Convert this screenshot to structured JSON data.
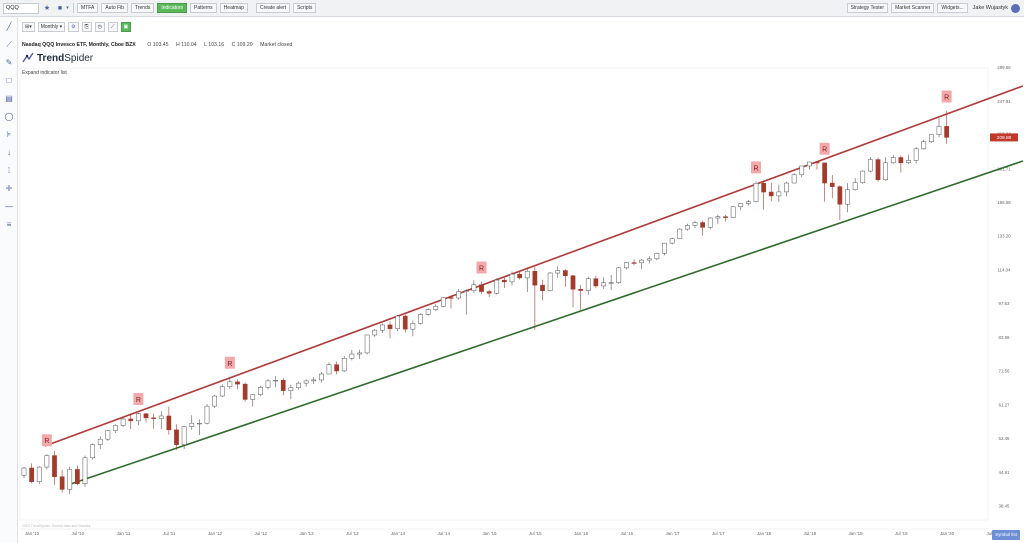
{
  "topbar": {
    "symbol_input": "QQQ",
    "buttons": [
      "MTFA",
      "Auto Fib",
      "Trends",
      "Indicators",
      "Patterns",
      "Heatmap",
      "Create alert",
      "Scripts"
    ],
    "active_button": "Indicators",
    "right_buttons": [
      "Strategy Tester",
      "Market Scanner",
      "Widgets..."
    ],
    "user_name": "Jake Wujastyk"
  },
  "chart_toolbar": {
    "timeframe": "Monthly"
  },
  "header": {
    "symbol_title": "Nasdaq QQQ Invesco ETF, Monthly, Cboe BZX",
    "open": "O 103.45",
    "high": "H 110.04",
    "low": "L 103.16",
    "close": "C 109.20",
    "market_status": "Market closed",
    "logo_bold": "Trend",
    "logo_light": "Spider",
    "expand_label": "Expand indicator list"
  },
  "watermark": "2020 TrendSpider. Source data and Nasdaq",
  "zoom_button": "Symbol list",
  "icons": {
    "star": "star-icon",
    "settings": "gear-icon",
    "user": "user-icon"
  },
  "colors": {
    "up_candle_fill": "#ffffff",
    "down_candle_fill": "#a33a2a",
    "resistance_line": "#b03a3a",
    "support_line": "#2e6b2a",
    "marker_bg": "#f3a9a9",
    "price_label_bg": "#c0392b",
    "active_green": "#5cb85c"
  },
  "chart_data": {
    "type": "candlestick",
    "y_axis_scale": "log",
    "y_ticks": [
      "289.56",
      "247.91",
      "213.24",
      "181.71",
      "155.58",
      "133.20",
      "114.04",
      "97.63",
      "83.59",
      "71.56",
      "61.27",
      "52.46",
      "44.91",
      "38.45"
    ],
    "x_ticks": [
      "Jan '10",
      "Jul '10",
      "Jan '11",
      "Jul '11",
      "Jan '12",
      "Jul '12",
      "Jan '13",
      "Jul '13",
      "Jan '14",
      "Jul '14",
      "Jan '15",
      "Jul '15",
      "Jan '16",
      "Jul '16",
      "Jan '17",
      "Jul '17",
      "Jan '18",
      "Jul '18",
      "Jan '19",
      "Jul '19",
      "Jan '20",
      "Jul '20"
    ],
    "current_price_label": "209.88",
    "marker_label": "R",
    "marker_months": [
      "2010-04",
      "2011-04",
      "2012-04",
      "2015-01",
      "2018-01",
      "2018-10",
      "2020-02"
    ],
    "resistance_line": {
      "start": "2010-04",
      "end": "2020-12"
    },
    "support_line": {
      "start": "2010-07",
      "end": "2020-12"
    },
    "candles": [
      {
        "o": 44.3,
        "h": 46.0,
        "l": 43.7,
        "c": 45.8
      },
      {
        "o": 45.8,
        "h": 46.8,
        "l": 42.7,
        "c": 43.0
      },
      {
        "o": 43.0,
        "h": 46.2,
        "l": 42.5,
        "c": 46.0
      },
      {
        "o": 46.0,
        "h": 48.8,
        "l": 45.5,
        "c": 48.5
      },
      {
        "o": 48.5,
        "h": 49.6,
        "l": 42.4,
        "c": 44.0
      },
      {
        "o": 44.0,
        "h": 45.4,
        "l": 40.9,
        "c": 41.5
      },
      {
        "o": 41.5,
        "h": 46.1,
        "l": 40.6,
        "c": 45.5
      },
      {
        "o": 45.5,
        "h": 46.3,
        "l": 42.3,
        "c": 42.6
      },
      {
        "o": 42.6,
        "h": 48.5,
        "l": 42.0,
        "c": 48.0
      },
      {
        "o": 48.0,
        "h": 51.3,
        "l": 47.6,
        "c": 51.0
      },
      {
        "o": 51.0,
        "h": 53.0,
        "l": 50.0,
        "c": 52.3
      },
      {
        "o": 52.3,
        "h": 54.6,
        "l": 51.9,
        "c": 54.4
      },
      {
        "o": 54.4,
        "h": 56.0,
        "l": 53.8,
        "c": 55.7
      },
      {
        "o": 55.7,
        "h": 57.9,
        "l": 55.3,
        "c": 57.4
      },
      {
        "o": 57.4,
        "h": 58.8,
        "l": 54.8,
        "c": 56.9
      },
      {
        "o": 56.9,
        "h": 59.0,
        "l": 55.8,
        "c": 58.8
      },
      {
        "o": 58.8,
        "h": 59.0,
        "l": 56.5,
        "c": 57.7
      },
      {
        "o": 57.7,
        "h": 58.8,
        "l": 54.9,
        "c": 57.5
      },
      {
        "o": 57.5,
        "h": 59.5,
        "l": 54.8,
        "c": 58.2
      },
      {
        "o": 58.2,
        "h": 60.8,
        "l": 53.4,
        "c": 54.6
      },
      {
        "o": 54.6,
        "h": 56.0,
        "l": 49.8,
        "c": 51.0
      },
      {
        "o": 51.0,
        "h": 55.5,
        "l": 50.0,
        "c": 55.4
      },
      {
        "o": 55.4,
        "h": 58.4,
        "l": 54.6,
        "c": 56.3
      },
      {
        "o": 56.3,
        "h": 57.3,
        "l": 53.3,
        "c": 56.3
      },
      {
        "o": 56.3,
        "h": 61.5,
        "l": 56.0,
        "c": 60.9
      },
      {
        "o": 60.9,
        "h": 64.1,
        "l": 60.4,
        "c": 63.8
      },
      {
        "o": 63.8,
        "h": 67.3,
        "l": 63.5,
        "c": 66.6
      },
      {
        "o": 66.6,
        "h": 69.7,
        "l": 65.9,
        "c": 68.1
      },
      {
        "o": 68.1,
        "h": 68.9,
        "l": 65.8,
        "c": 67.4
      },
      {
        "o": 67.4,
        "h": 67.9,
        "l": 62.2,
        "c": 62.8
      },
      {
        "o": 62.8,
        "h": 64.4,
        "l": 60.8,
        "c": 64.2
      },
      {
        "o": 64.2,
        "h": 66.9,
        "l": 63.7,
        "c": 66.4
      },
      {
        "o": 66.4,
        "h": 69.0,
        "l": 65.8,
        "c": 68.4
      },
      {
        "o": 68.4,
        "h": 69.9,
        "l": 66.4,
        "c": 68.6
      },
      {
        "o": 68.6,
        "h": 69.3,
        "l": 64.0,
        "c": 65.4
      },
      {
        "o": 65.4,
        "h": 67.2,
        "l": 62.9,
        "c": 66.3
      },
      {
        "o": 66.3,
        "h": 68.2,
        "l": 65.7,
        "c": 67.7
      },
      {
        "o": 67.7,
        "h": 68.9,
        "l": 66.6,
        "c": 68.4
      },
      {
        "o": 68.4,
        "h": 69.6,
        "l": 67.4,
        "c": 68.7
      },
      {
        "o": 68.7,
        "h": 71.3,
        "l": 67.9,
        "c": 70.6
      },
      {
        "o": 70.6,
        "h": 74.5,
        "l": 70.5,
        "c": 73.7
      },
      {
        "o": 73.7,
        "h": 74.8,
        "l": 70.5,
        "c": 71.6
      },
      {
        "o": 71.6,
        "h": 76.7,
        "l": 71.3,
        "c": 75.9
      },
      {
        "o": 75.9,
        "h": 78.9,
        "l": 75.2,
        "c": 77.4
      },
      {
        "o": 77.4,
        "h": 79.0,
        "l": 75.6,
        "c": 77.8
      },
      {
        "o": 77.8,
        "h": 84.6,
        "l": 77.3,
        "c": 84.5
      },
      {
        "o": 84.5,
        "h": 86.9,
        "l": 83.8,
        "c": 86.4
      },
      {
        "o": 86.4,
        "h": 89.1,
        "l": 85.3,
        "c": 88.5
      },
      {
        "o": 88.5,
        "h": 90.0,
        "l": 83.2,
        "c": 87.0
      },
      {
        "o": 87.0,
        "h": 92.7,
        "l": 86.0,
        "c": 92.2
      },
      {
        "o": 92.2,
        "h": 92.8,
        "l": 85.5,
        "c": 86.8
      },
      {
        "o": 86.8,
        "h": 90.3,
        "l": 84.0,
        "c": 89.1
      },
      {
        "o": 89.1,
        "h": 93.4,
        "l": 88.7,
        "c": 92.9
      },
      {
        "o": 92.9,
        "h": 95.5,
        "l": 92.3,
        "c": 95.0
      },
      {
        "o": 95.0,
        "h": 97.4,
        "l": 94.3,
        "c": 96.4
      },
      {
        "o": 96.4,
        "h": 100.4,
        "l": 96.0,
        "c": 100.4
      },
      {
        "o": 100.4,
        "h": 101.4,
        "l": 95.5,
        "c": 100.2
      },
      {
        "o": 100.2,
        "h": 104.4,
        "l": 99.5,
        "c": 103.2
      },
      {
        "o": 103.2,
        "h": 104.3,
        "l": 92.8,
        "c": 103.6
      },
      {
        "o": 103.6,
        "h": 108.8,
        "l": 102.6,
        "c": 106.5
      },
      {
        "o": 106.5,
        "h": 108.1,
        "l": 102.0,
        "c": 103.2
      },
      {
        "o": 103.2,
        "h": 104.1,
        "l": 100.6,
        "c": 102.4
      },
      {
        "o": 102.4,
        "h": 109.7,
        "l": 101.8,
        "c": 108.8
      },
      {
        "o": 108.8,
        "h": 110.0,
        "l": 104.9,
        "c": 107.9
      },
      {
        "o": 107.9,
        "h": 113.2,
        "l": 106.1,
        "c": 111.8
      },
      {
        "o": 111.8,
        "h": 113.1,
        "l": 109.1,
        "c": 109.9
      },
      {
        "o": 109.9,
        "h": 115.2,
        "l": 103.0,
        "c": 113.3
      },
      {
        "o": 113.3,
        "h": 115.6,
        "l": 86.5,
        "c": 106.3
      },
      {
        "o": 106.3,
        "h": 109.0,
        "l": 99.1,
        "c": 103.6
      },
      {
        "o": 103.6,
        "h": 113.0,
        "l": 103.3,
        "c": 112.4
      },
      {
        "o": 112.4,
        "h": 116.0,
        "l": 109.8,
        "c": 113.7
      },
      {
        "o": 113.7,
        "h": 114.4,
        "l": 105.5,
        "c": 111.0
      },
      {
        "o": 111.0,
        "h": 111.3,
        "l": 96.0,
        "c": 104.3
      },
      {
        "o": 104.3,
        "h": 106.4,
        "l": 94.8,
        "c": 103.7
      },
      {
        "o": 103.7,
        "h": 110.5,
        "l": 101.8,
        "c": 109.5
      },
      {
        "o": 109.5,
        "h": 111.0,
        "l": 104.8,
        "c": 105.9
      },
      {
        "o": 105.9,
        "h": 110.2,
        "l": 104.5,
        "c": 107.5
      },
      {
        "o": 107.5,
        "h": 111.4,
        "l": 103.9,
        "c": 107.5
      },
      {
        "o": 107.5,
        "h": 115.6,
        "l": 106.9,
        "c": 115.1
      },
      {
        "o": 115.1,
        "h": 118.2,
        "l": 114.3,
        "c": 117.9
      },
      {
        "o": 117.9,
        "h": 119.6,
        "l": 116.5,
        "c": 117.8
      },
      {
        "o": 117.8,
        "h": 120.0,
        "l": 114.5,
        "c": 119.3
      },
      {
        "o": 119.3,
        "h": 121.5,
        "l": 117.5,
        "c": 120.0
      },
      {
        "o": 120.0,
        "h": 123.5,
        "l": 119.2,
        "c": 123.1
      },
      {
        "o": 123.1,
        "h": 129.1,
        "l": 122.0,
        "c": 129.0
      },
      {
        "o": 129.0,
        "h": 132.3,
        "l": 128.2,
        "c": 131.6
      },
      {
        "o": 131.6,
        "h": 138.1,
        "l": 131.4,
        "c": 137.6
      },
      {
        "o": 137.6,
        "h": 141.0,
        "l": 136.6,
        "c": 140.0
      },
      {
        "o": 140.0,
        "h": 143.0,
        "l": 138.3,
        "c": 141.8
      },
      {
        "o": 141.8,
        "h": 143.0,
        "l": 133.5,
        "c": 138.7
      },
      {
        "o": 138.7,
        "h": 145.3,
        "l": 137.5,
        "c": 144.8
      },
      {
        "o": 144.8,
        "h": 147.0,
        "l": 141.0,
        "c": 145.7
      },
      {
        "o": 145.7,
        "h": 146.9,
        "l": 142.5,
        "c": 145.1
      },
      {
        "o": 145.1,
        "h": 152.9,
        "l": 144.7,
        "c": 152.5
      },
      {
        "o": 152.5,
        "h": 155.0,
        "l": 150.1,
        "c": 154.8
      },
      {
        "o": 154.8,
        "h": 157.3,
        "l": 153.4,
        "c": 156.1
      },
      {
        "o": 156.1,
        "h": 171.4,
        "l": 155.5,
        "c": 169.9
      },
      {
        "o": 169.9,
        "h": 172.0,
        "l": 150.5,
        "c": 163.2
      },
      {
        "o": 163.2,
        "h": 170.4,
        "l": 156.2,
        "c": 160.3
      },
      {
        "o": 160.3,
        "h": 168.9,
        "l": 156.1,
        "c": 163.3
      },
      {
        "o": 163.3,
        "h": 171.1,
        "l": 160.0,
        "c": 170.1
      },
      {
        "o": 170.1,
        "h": 178.0,
        "l": 169.9,
        "c": 176.7
      },
      {
        "o": 176.7,
        "h": 184.1,
        "l": 174.6,
        "c": 184.0
      },
      {
        "o": 184.0,
        "h": 187.5,
        "l": 180.9,
        "c": 187.4
      },
      {
        "o": 187.4,
        "h": 187.5,
        "l": 180.9,
        "c": 186.6
      },
      {
        "o": 186.6,
        "h": 186.8,
        "l": 156.1,
        "c": 170.1
      },
      {
        "o": 170.1,
        "h": 176.5,
        "l": 158.6,
        "c": 167.3
      },
      {
        "o": 167.3,
        "h": 168.4,
        "l": 143.5,
        "c": 154.3
      },
      {
        "o": 154.3,
        "h": 170.0,
        "l": 148.6,
        "c": 165.0
      },
      {
        "o": 165.0,
        "h": 174.1,
        "l": 164.3,
        "c": 170.4
      },
      {
        "o": 170.4,
        "h": 180.4,
        "l": 169.5,
        "c": 179.7
      },
      {
        "o": 179.7,
        "h": 191.5,
        "l": 178.8,
        "c": 189.5
      },
      {
        "o": 189.5,
        "h": 191.4,
        "l": 171.1,
        "c": 172.7
      },
      {
        "o": 172.7,
        "h": 191.6,
        "l": 171.9,
        "c": 186.7
      },
      {
        "o": 186.7,
        "h": 193.4,
        "l": 186.1,
        "c": 191.3
      },
      {
        "o": 191.3,
        "h": 193.1,
        "l": 178.6,
        "c": 186.7
      },
      {
        "o": 186.7,
        "h": 194.0,
        "l": 185.6,
        "c": 188.8
      },
      {
        "o": 188.8,
        "h": 200.7,
        "l": 186.2,
        "c": 199.1
      },
      {
        "o": 199.1,
        "h": 207.5,
        "l": 198.4,
        "c": 205.8
      },
      {
        "o": 205.8,
        "h": 212.6,
        "l": 204.5,
        "c": 212.6
      },
      {
        "o": 212.6,
        "h": 229.3,
        "l": 210.3,
        "c": 220.8
      },
      {
        "o": 220.8,
        "h": 237.5,
        "l": 203.8,
        "c": 209.9
      }
    ]
  }
}
